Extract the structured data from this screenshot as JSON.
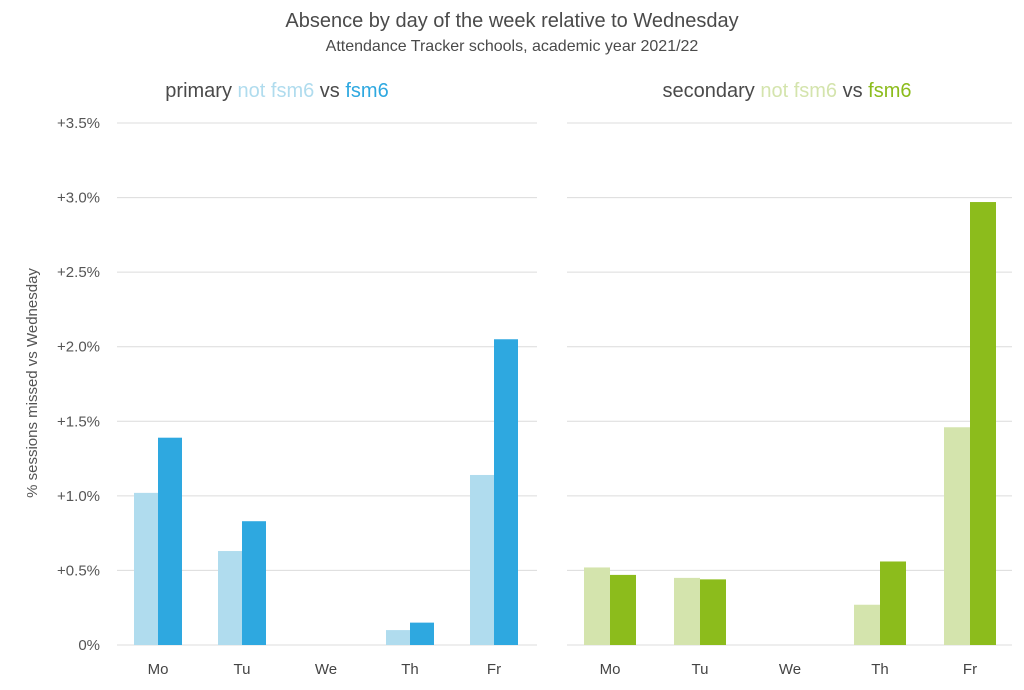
{
  "title": "Absence by day of the week relative to Wednesday",
  "subtitle": "Attendance Tracker schools, academic year 2021/22",
  "ylabel": "% sessions missed vs Wednesday",
  "colors": {
    "primary_not_fsm6": "#b0dcee",
    "primary_fsm6": "#2ea8e0",
    "secondary_not_fsm6": "#d4e4ad",
    "secondary_fsm6": "#8cbc1c"
  },
  "chart_data": [
    {
      "type": "bar",
      "panel_title": {
        "prefix": "primary ",
        "series_a": "not fsm6",
        "middle": " vs ",
        "series_b": "fsm6"
      },
      "categories": [
        "Mo",
        "Tu",
        "We",
        "Th",
        "Fr"
      ],
      "series": [
        {
          "name": "not fsm6",
          "values": [
            1.02,
            0.63,
            0.0,
            0.1,
            1.14
          ]
        },
        {
          "name": "fsm6",
          "values": [
            1.39,
            0.83,
            0.0,
            0.15,
            2.05
          ]
        }
      ],
      "ylim": [
        0,
        3.5
      ],
      "yticks": [
        "0%",
        "+0.5%",
        "+1.0%",
        "+1.5%",
        "+2.0%",
        "+2.5%",
        "+3.0%",
        "+3.5%"
      ],
      "grid": true
    },
    {
      "type": "bar",
      "panel_title": {
        "prefix": "secondary ",
        "series_a": "not fsm6",
        "middle": " vs ",
        "series_b": "fsm6"
      },
      "categories": [
        "Mo",
        "Tu",
        "We",
        "Th",
        "Fr"
      ],
      "series": [
        {
          "name": "not fsm6",
          "values": [
            0.52,
            0.45,
            0.0,
            0.27,
            1.46
          ]
        },
        {
          "name": "fsm6",
          "values": [
            0.47,
            0.44,
            0.0,
            0.56,
            2.97
          ]
        }
      ],
      "ylim": [
        0,
        3.5
      ],
      "grid": true
    }
  ]
}
